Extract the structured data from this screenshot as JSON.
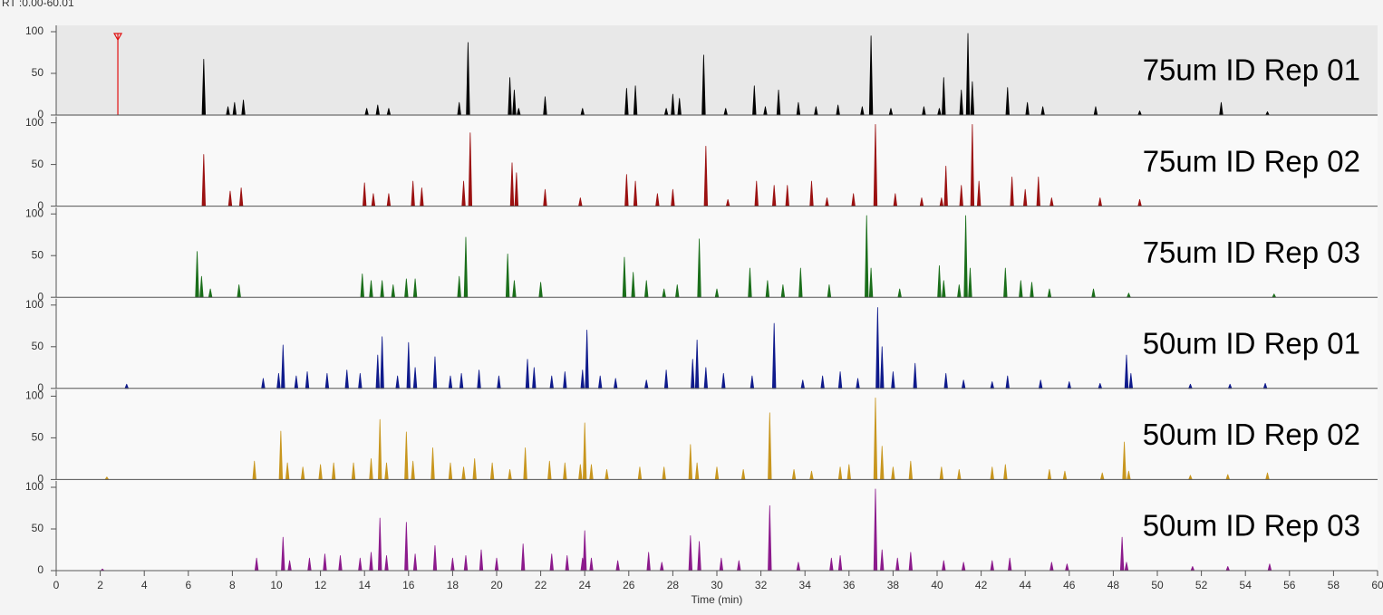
{
  "chart_data": {
    "type": "peaks",
    "title": "RT :0.00-60.01",
    "xlabel": "Time (min)",
    "xlim": [
      0,
      60
    ],
    "xticks": [
      0,
      2,
      4,
      6,
      8,
      10,
      12,
      14,
      16,
      18,
      20,
      22,
      24,
      26,
      28,
      30,
      32,
      34,
      36,
      38,
      40,
      42,
      44,
      46,
      48,
      50,
      52,
      54,
      56,
      58,
      60
    ],
    "ylim": [
      0,
      100
    ],
    "yticks": [
      0,
      50,
      100
    ],
    "marker": {
      "x": 2.8,
      "color": "#e01010"
    },
    "series": [
      {
        "name": "75um ID Rep 01",
        "color": "#000000",
        "x": [
          6.7,
          7.8,
          8.1,
          8.5,
          14.1,
          14.6,
          15.1,
          18.3,
          18.7,
          20.6,
          20.8,
          21.0,
          22.2,
          23.9,
          25.9,
          26.3,
          27.7,
          28.0,
          28.3,
          29.4,
          30.4,
          31.7,
          32.2,
          32.8,
          33.7,
          34.5,
          35.5,
          36.6,
          37.0,
          37.9,
          39.4,
          40.1,
          40.3,
          41.1,
          41.4,
          41.6,
          43.2,
          44.1,
          44.8,
          47.2,
          49.2,
          52.9,
          55.0
        ],
        "values": [
          67,
          10,
          15,
          18,
          8,
          12,
          8,
          15,
          87,
          45,
          30,
          8,
          22,
          8,
          32,
          35,
          8,
          25,
          20,
          72,
          8,
          35,
          10,
          30,
          15,
          10,
          12,
          10,
          95,
          8,
          10,
          8,
          45,
          30,
          98,
          40,
          33,
          15,
          10,
          10,
          5,
          15,
          4
        ]
      },
      {
        "name": "75um ID Rep 02",
        "color": "#9b1111",
        "x": [
          6.7,
          7.9,
          8.4,
          14.0,
          14.4,
          15.1,
          16.2,
          16.6,
          18.5,
          18.8,
          20.7,
          20.9,
          22.2,
          23.8,
          25.9,
          26.3,
          27.3,
          28.0,
          29.5,
          30.5,
          31.8,
          32.6,
          33.2,
          34.3,
          35.0,
          36.2,
          37.2,
          38.1,
          39.3,
          40.2,
          40.4,
          41.1,
          41.6,
          41.9,
          43.4,
          44.0,
          44.6,
          45.2,
          47.4,
          49.2
        ],
        "values": [
          62,
          18,
          22,
          28,
          15,
          15,
          30,
          22,
          30,
          88,
          52,
          40,
          20,
          10,
          38,
          30,
          15,
          20,
          72,
          8,
          30,
          25,
          25,
          30,
          10,
          15,
          98,
          15,
          10,
          10,
          48,
          25,
          98,
          30,
          35,
          20,
          35,
          10,
          10,
          8
        ]
      },
      {
        "name": "75um ID Rep 03",
        "color": "#1a6e1a",
        "x": [
          6.4,
          6.6,
          7.0,
          8.3,
          13.9,
          14.3,
          14.8,
          15.3,
          15.9,
          16.3,
          18.3,
          18.6,
          20.5,
          20.8,
          22.0,
          25.8,
          26.2,
          26.8,
          27.6,
          28.2,
          29.2,
          30.0,
          31.5,
          32.3,
          33.0,
          33.8,
          35.1,
          36.8,
          37.0,
          38.3,
          40.1,
          40.3,
          41.0,
          41.3,
          41.5,
          43.1,
          43.8,
          44.3,
          45.1,
          47.1,
          48.7,
          55.3
        ],
        "values": [
          55,
          25,
          10,
          15,
          28,
          20,
          20,
          15,
          22,
          22,
          25,
          72,
          52,
          20,
          18,
          48,
          30,
          20,
          10,
          15,
          70,
          10,
          35,
          20,
          15,
          35,
          15,
          98,
          35,
          10,
          38,
          20,
          15,
          98,
          35,
          35,
          20,
          18,
          10,
          10,
          5,
          4
        ]
      },
      {
        "name": "50um ID Rep 01",
        "color": "#0f1a8c",
        "x": [
          3.2,
          9.4,
          10.1,
          10.3,
          10.9,
          11.4,
          12.3,
          13.2,
          13.8,
          14.6,
          14.8,
          15.5,
          16.0,
          16.3,
          17.2,
          17.9,
          18.4,
          19.2,
          20.1,
          21.4,
          21.7,
          22.5,
          23.1,
          23.9,
          24.1,
          24.7,
          25.4,
          26.8,
          27.7,
          28.9,
          29.1,
          29.5,
          30.3,
          31.6,
          32.6,
          33.9,
          34.8,
          35.6,
          36.4,
          37.3,
          37.5,
          38.0,
          39.0,
          40.4,
          41.2,
          42.5,
          43.2,
          44.7,
          46.0,
          47.4,
          48.6,
          48.8,
          51.5,
          53.3,
          54.9
        ],
        "values": [
          5,
          12,
          18,
          52,
          15,
          20,
          18,
          22,
          18,
          40,
          62,
          15,
          55,
          25,
          38,
          15,
          18,
          22,
          15,
          35,
          25,
          15,
          20,
          22,
          70,
          15,
          12,
          10,
          22,
          35,
          58,
          25,
          18,
          15,
          78,
          10,
          15,
          20,
          12,
          97,
          50,
          20,
          30,
          18,
          10,
          8,
          15,
          10,
          8,
          6,
          40,
          18,
          5,
          5,
          6
        ]
      },
      {
        "name": "50um ID Rep 02",
        "color": "#c8961e",
        "x": [
          2.3,
          9.0,
          10.2,
          10.5,
          11.2,
          12.0,
          12.6,
          13.5,
          14.3,
          14.7,
          15.0,
          15.9,
          16.2,
          17.1,
          17.9,
          18.5,
          19.0,
          19.8,
          20.6,
          21.3,
          22.4,
          23.1,
          23.8,
          24.0,
          24.3,
          25.0,
          26.5,
          27.6,
          28.8,
          29.1,
          30.0,
          31.2,
          32.4,
          33.5,
          34.3,
          35.6,
          36.0,
          37.2,
          37.5,
          38.0,
          38.8,
          40.2,
          41.0,
          42.5,
          43.1,
          45.1,
          45.8,
          47.5,
          48.5,
          48.7,
          51.5,
          53.2,
          55.0
        ],
        "values": [
          3,
          22,
          58,
          20,
          15,
          18,
          20,
          20,
          25,
          72,
          20,
          57,
          22,
          38,
          20,
          15,
          25,
          20,
          12,
          38,
          22,
          20,
          18,
          68,
          18,
          12,
          15,
          15,
          42,
          20,
          15,
          12,
          80,
          12,
          10,
          15,
          18,
          98,
          40,
          15,
          22,
          15,
          12,
          15,
          18,
          12,
          10,
          8,
          45,
          10,
          5,
          6,
          8
        ]
      },
      {
        "name": "50um ID Rep 03",
        "color": "#8c1a8c",
        "x": [
          2.1,
          9.1,
          10.3,
          10.6,
          11.5,
          12.2,
          12.9,
          13.8,
          14.3,
          14.7,
          15.0,
          15.9,
          16.3,
          17.2,
          18.0,
          18.6,
          19.3,
          20.0,
          21.2,
          22.5,
          23.2,
          23.9,
          24.0,
          24.3,
          25.5,
          26.9,
          27.5,
          28.8,
          29.2,
          30.2,
          31.0,
          32.4,
          33.7,
          35.2,
          35.6,
          37.2,
          37.5,
          38.2,
          38.8,
          40.3,
          41.2,
          42.5,
          43.3,
          45.2,
          45.9,
          48.4,
          48.6,
          51.6,
          53.2,
          55.1
        ],
        "values": [
          2,
          15,
          40,
          12,
          15,
          20,
          18,
          15,
          22,
          63,
          18,
          58,
          20,
          30,
          15,
          18,
          25,
          15,
          32,
          20,
          18,
          15,
          48,
          15,
          12,
          22,
          10,
          42,
          35,
          15,
          12,
          78,
          10,
          15,
          18,
          98,
          25,
          15,
          22,
          12,
          10,
          12,
          15,
          10,
          8,
          40,
          10,
          5,
          5,
          8
        ]
      }
    ]
  }
}
